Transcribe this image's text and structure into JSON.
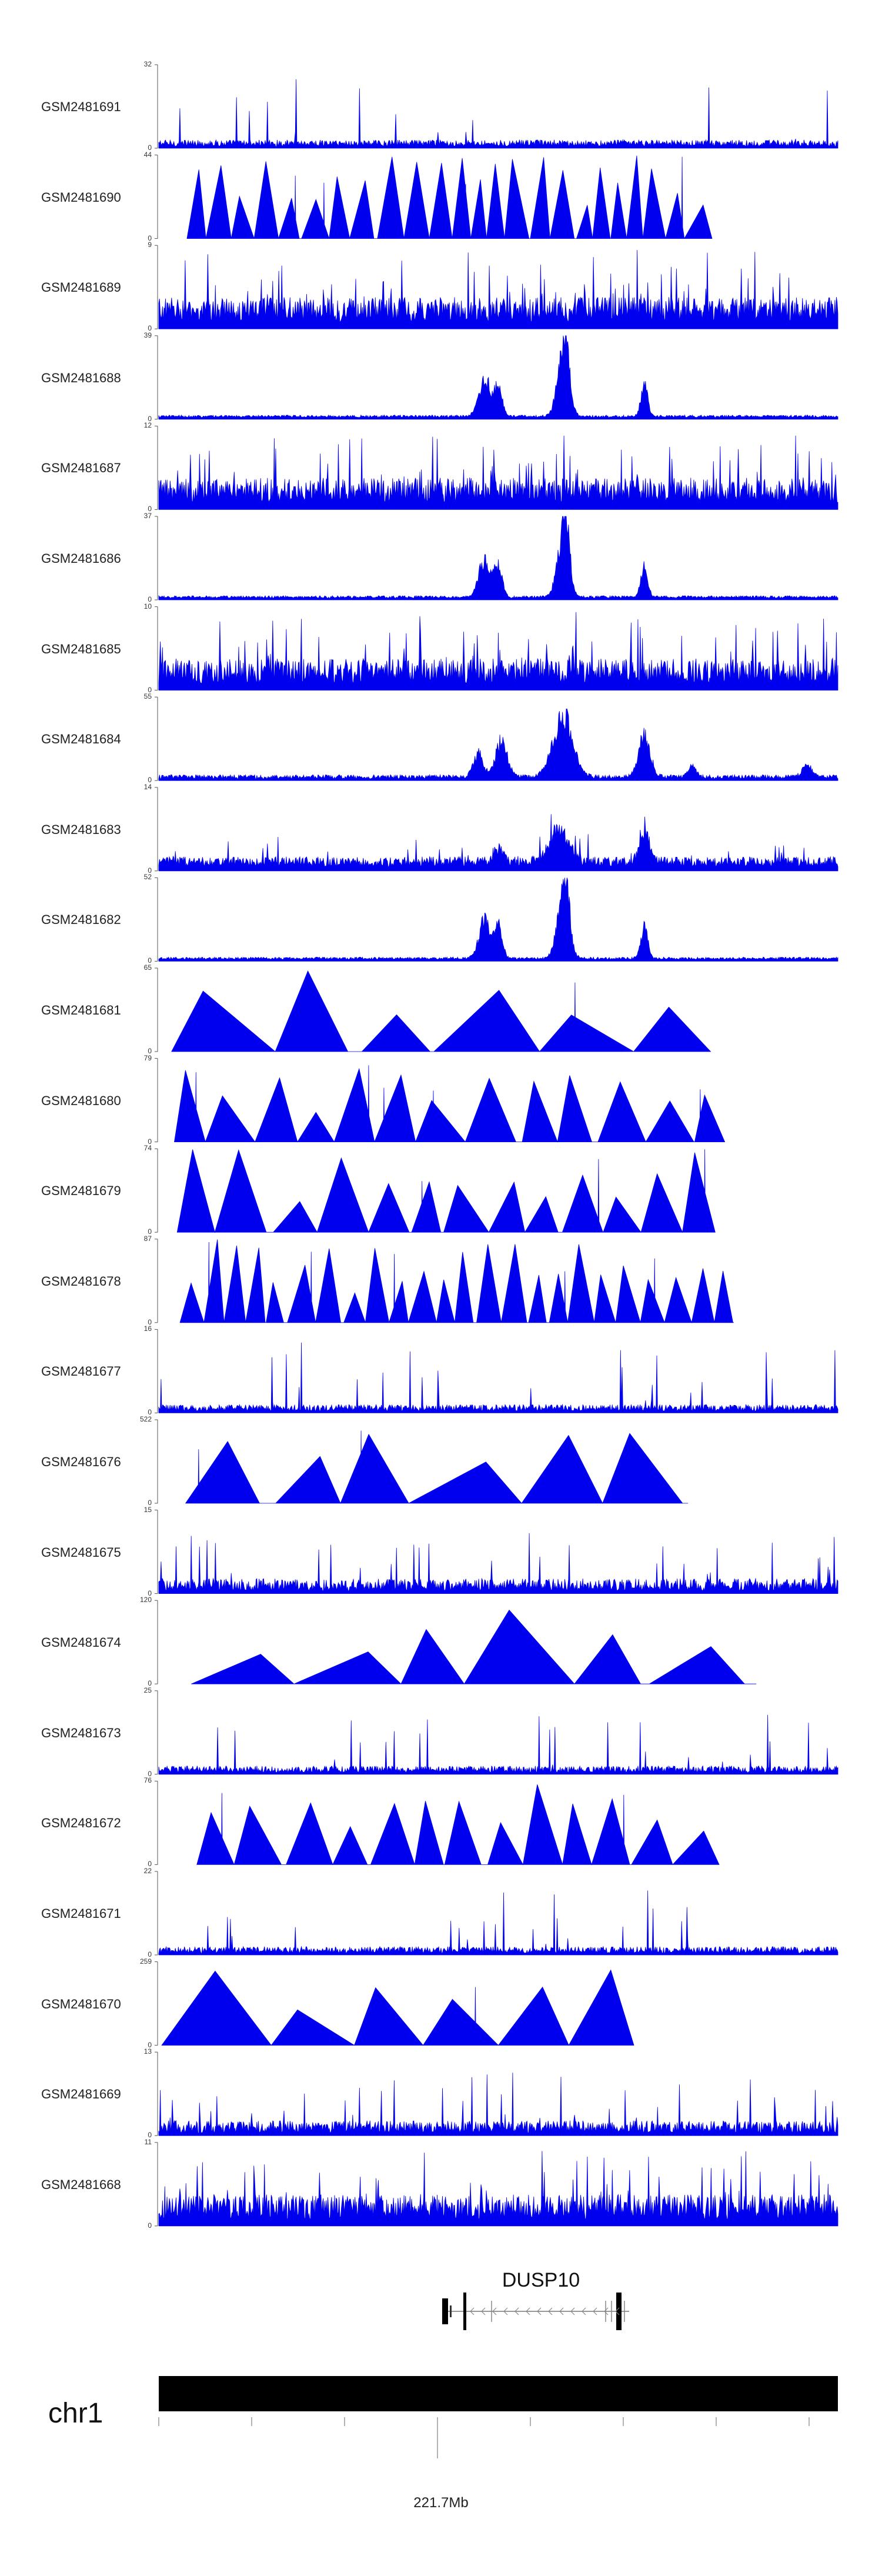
{
  "chart_data": {
    "type": "area",
    "title": "",
    "tracks": [
      {
        "name": "GSM2481691",
        "max": 32,
        "min": 0,
        "style": "peaks",
        "profile": "noisy-sparse"
      },
      {
        "name": "GSM2481690",
        "max": 44,
        "min": 0,
        "style": "triangles",
        "profile": "triangles-dense"
      },
      {
        "name": "GSM2481689",
        "max": 9,
        "min": 0,
        "style": "peaks",
        "profile": "noisy-dense"
      },
      {
        "name": "GSM2481688",
        "max": 39,
        "min": 0,
        "style": "peaks",
        "profile": "peaky"
      },
      {
        "name": "GSM2481687",
        "max": 12,
        "min": 0,
        "style": "peaks",
        "profile": "noisy-dense"
      },
      {
        "name": "GSM2481686",
        "max": 37,
        "min": 0,
        "style": "peaks",
        "profile": "peaky"
      },
      {
        "name": "GSM2481685",
        "max": 10,
        "min": 0,
        "style": "peaks",
        "profile": "noisy-dense"
      },
      {
        "name": "GSM2481684",
        "max": 55,
        "min": 0,
        "style": "peaks",
        "profile": "peaky-wide"
      },
      {
        "name": "GSM2481683",
        "max": 14,
        "min": 0,
        "style": "peaks",
        "profile": "peaky-noisy"
      },
      {
        "name": "GSM2481682",
        "max": 52,
        "min": 0,
        "style": "peaks",
        "profile": "peaky"
      },
      {
        "name": "GSM2481681",
        "max": 65,
        "min": 0,
        "style": "triangles",
        "profile": "triangles-sparse"
      },
      {
        "name": "GSM2481680",
        "max": 79,
        "min": 0,
        "style": "triangles",
        "profile": "triangles-medium"
      },
      {
        "name": "GSM2481679",
        "max": 74,
        "min": 0,
        "style": "triangles",
        "profile": "triangles-medium"
      },
      {
        "name": "GSM2481678",
        "max": 87,
        "min": 0,
        "style": "triangles",
        "profile": "triangles-dense"
      },
      {
        "name": "GSM2481677",
        "max": 16,
        "min": 0,
        "style": "peaks",
        "profile": "noisy-sparse"
      },
      {
        "name": "GSM2481676",
        "max": 522,
        "min": 0,
        "style": "triangles",
        "profile": "triangles-sparse"
      },
      {
        "name": "GSM2481675",
        "max": 15,
        "min": 0,
        "style": "peaks",
        "profile": "noisy-medium"
      },
      {
        "name": "GSM2481674",
        "max": 120,
        "min": 0,
        "style": "triangles",
        "profile": "triangles-sparse"
      },
      {
        "name": "GSM2481673",
        "max": 25,
        "min": 0,
        "style": "peaks",
        "profile": "noisy-sparse"
      },
      {
        "name": "GSM2481672",
        "max": 76,
        "min": 0,
        "style": "triangles",
        "profile": "triangles-medium"
      },
      {
        "name": "GSM2481671",
        "max": 22,
        "min": 0,
        "style": "peaks",
        "profile": "noisy-sparse"
      },
      {
        "name": "GSM2481670",
        "max": 259,
        "min": 0,
        "style": "triangles",
        "profile": "triangles-sparse"
      },
      {
        "name": "GSM2481669",
        "max": 13,
        "min": 0,
        "style": "peaks",
        "profile": "noisy-medium"
      },
      {
        "name": "GSM2481668",
        "max": 11,
        "min": 0,
        "style": "peaks",
        "profile": "noisy-dense"
      }
    ],
    "gene": {
      "name": "DUSP10",
      "strand": "-"
    },
    "chromosome": "chr1",
    "axis_tick_label": "221.7Mb",
    "colors": {
      "signal": "#0000ee",
      "ideogram": "#000000",
      "label": "#222222"
    }
  }
}
